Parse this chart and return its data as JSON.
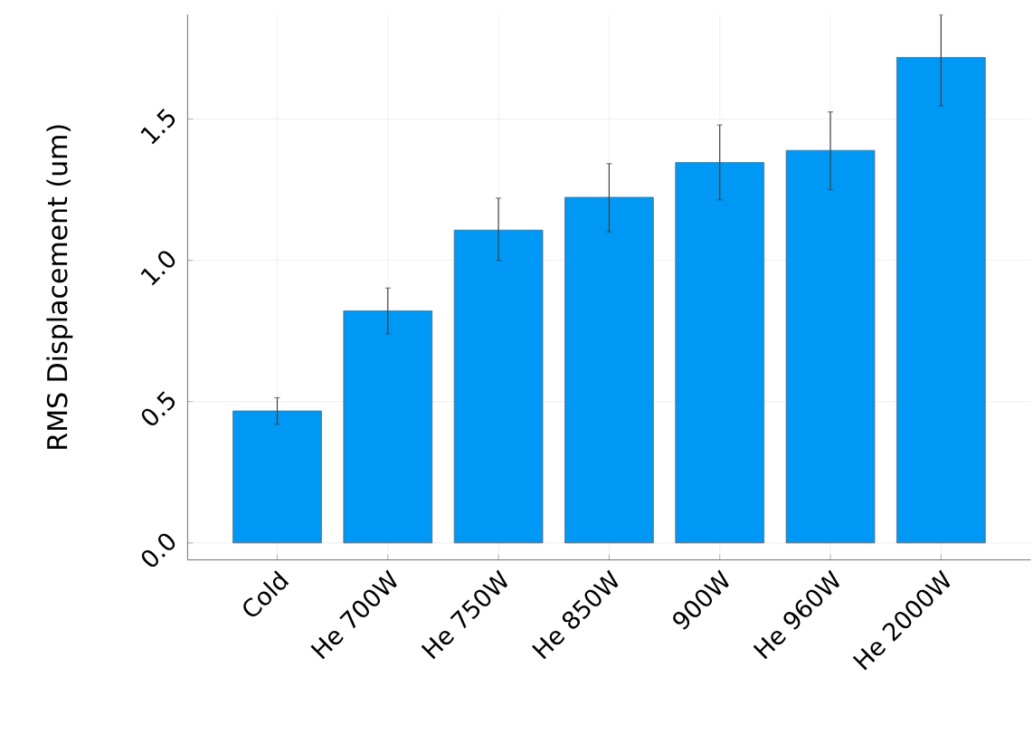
{
  "chart_data": {
    "type": "bar",
    "ylabel": "RMS Displacement (um)",
    "categories": [
      "Cold",
      "He 700W",
      "He 750W",
      "He 850W",
      "900W",
      "He 960W",
      "He 2000W"
    ],
    "values": [
      0.467,
      0.821,
      1.107,
      1.223,
      1.346,
      1.389,
      1.718
    ],
    "errors": [
      [
        0.42,
        0.514
      ],
      [
        0.74,
        0.902
      ],
      [
        1.0,
        1.22
      ],
      [
        1.101,
        1.342
      ],
      [
        1.214,
        1.479
      ],
      [
        1.25,
        1.525
      ],
      [
        1.547,
        1.87
      ]
    ],
    "color": "#0098f5",
    "ylim": [
      -0.06,
      1.87
    ],
    "yticks": [
      {
        "value": 0,
        "label": "0.0"
      },
      0.5,
      {
        "value": 1,
        "label": "1.0"
      },
      1.5
    ],
    "grid": true
  }
}
